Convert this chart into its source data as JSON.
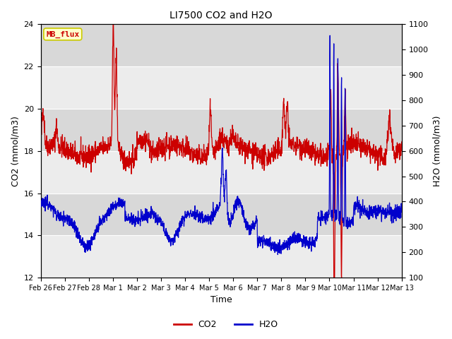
{
  "title": "LI7500 CO2 and H2O",
  "ylabel_left": "CO2 (mmol/m3)",
  "ylabel_right": "H2O (mmol/m3)",
  "xlabel": "Time",
  "ylim_left": [
    12,
    24
  ],
  "ylim_right": [
    100,
    1100
  ],
  "yticks_left": [
    12,
    14,
    16,
    18,
    20,
    22,
    24
  ],
  "yticks_right": [
    100,
    200,
    300,
    400,
    500,
    600,
    700,
    800,
    900,
    1000,
    1100
  ],
  "xtick_labels": [
    "Feb 26",
    "Feb 27",
    "Feb 28",
    "Mar 1",
    "Mar 2",
    "Mar 3",
    "Mar 4",
    "Mar 5",
    "Mar 6",
    "Mar 7",
    "Mar 8",
    "Mar 9",
    "Mar 10",
    "Mar 11",
    "Mar 12",
    "Mar 13"
  ],
  "co2_color": "#cc0000",
  "h2o_color": "#0000cc",
  "plot_bg_color": "#e8e8e8",
  "band_dark_color": "#d8d8d8",
  "band_light_color": "#ececec",
  "grid_color": "#ffffff",
  "legend_label_co2": "CO2",
  "legend_label_h2o": "H2O",
  "site_label": "MB_flux",
  "site_label_bg": "#ffffcc",
  "site_label_border": "#cccc00",
  "site_label_color": "#cc0000"
}
